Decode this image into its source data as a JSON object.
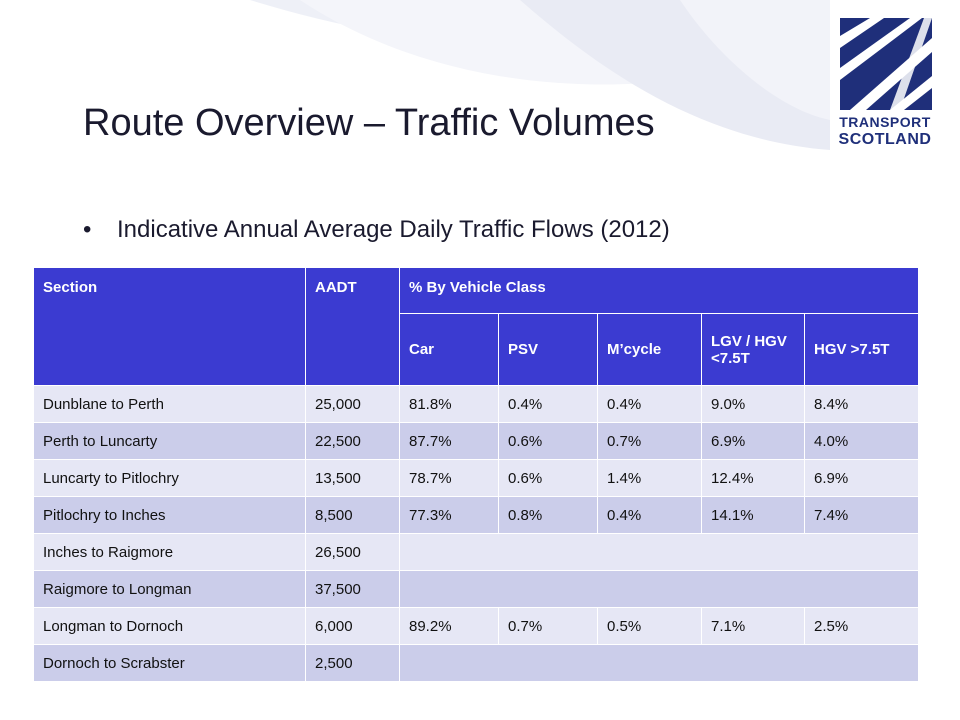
{
  "brand": {
    "line1": "TRANSPORT",
    "line2": "SCOTLAND",
    "color": "#1f2f7a"
  },
  "slide": {
    "title": "Route Overview – Traffic Volumes",
    "bullet": "Indicative Annual Average Daily Traffic Flows (2012)"
  },
  "table": {
    "headers": {
      "section": "Section",
      "aadt": "AADT",
      "class_group": "% By Vehicle Class",
      "car": "Car",
      "psv": "PSV",
      "mcycle": "M’cycle",
      "lgv": "LGV / HGV <7.5T",
      "hgv": "HGV >7.5T"
    },
    "rows": [
      {
        "section": "Dunblane to Perth",
        "aadt": "25,000",
        "car": "81.8%",
        "psv": "0.4%",
        "mcycle": "0.4%",
        "lgv": "9.0%",
        "hgv": "8.4%"
      },
      {
        "section": "Perth to Luncarty",
        "aadt": "22,500",
        "car": "87.7%",
        "psv": "0.6%",
        "mcycle": "0.7%",
        "lgv": "6.9%",
        "hgv": "4.0%"
      },
      {
        "section": "Luncarty to Pitlochry",
        "aadt": "13,500",
        "car": "78.7%",
        "psv": "0.6%",
        "mcycle": "1.4%",
        "lgv": "12.4%",
        "hgv": "6.9%"
      },
      {
        "section": "Pitlochry to Inches",
        "aadt": "8,500",
        "car": "77.3%",
        "psv": "0.8%",
        "mcycle": "0.4%",
        "lgv": "14.1%",
        "hgv": "7.4%"
      },
      {
        "section": "Inches to Raigmore",
        "aadt": "26,500"
      },
      {
        "section": "Raigmore to Longman",
        "aadt": "37,500"
      },
      {
        "section": "Longman to Dornoch",
        "aadt": "6,000",
        "car": "89.2%",
        "psv": "0.7%",
        "mcycle": "0.5%",
        "lgv": "7.1%",
        "hgv": "2.5%"
      },
      {
        "section": "Dornoch to Scrabster",
        "aadt": "2,500"
      }
    ],
    "colors": {
      "header": "#3b3bd1",
      "row_light": "#e6e7f5",
      "row_dark": "#cbcdea"
    }
  }
}
